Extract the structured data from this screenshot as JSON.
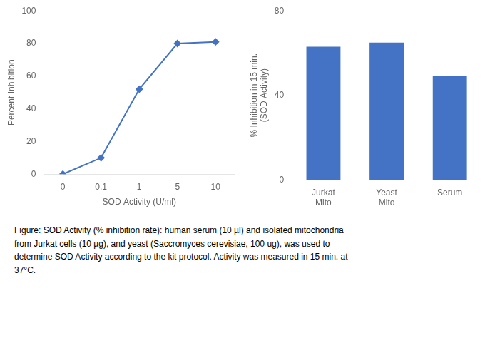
{
  "chart_data": [
    {
      "type": "line",
      "categories": [
        "0",
        "0.1",
        "1",
        "5",
        "10"
      ],
      "values": [
        0,
        10,
        52,
        80,
        81
      ],
      "color": "#4472C4",
      "marker": "diamond",
      "x_label": "SOD Activity (U/ml)",
      "y_label": "Percent Inhibition",
      "ylim": [
        0,
        100
      ],
      "yticks": [
        0,
        20,
        40,
        60,
        80,
        100
      ],
      "grid": false
    },
    {
      "type": "bar",
      "categories": [
        "Jurkat\nMito",
        "Yeast\nMito",
        "Serum"
      ],
      "values": [
        63,
        65,
        49
      ],
      "color": "#4472C4",
      "y_label": "% Inhibition in 15 min.\n(SOD Activity)",
      "ylim": [
        0,
        80
      ],
      "yticks": [
        0,
        40,
        80
      ],
      "grid": false
    }
  ],
  "caption": [
    "Figure: SOD Activity (% inhibition rate): human serum (10 µl) and isolated mitochondria",
    "from Jurkat cells (10 µg), and yeast (Saccromyces cerevisiae, 100 ug), was used to",
    "determine SOD Activity according to the kit protocol. Activity was measured in 15 min. at",
    "37°C."
  ]
}
